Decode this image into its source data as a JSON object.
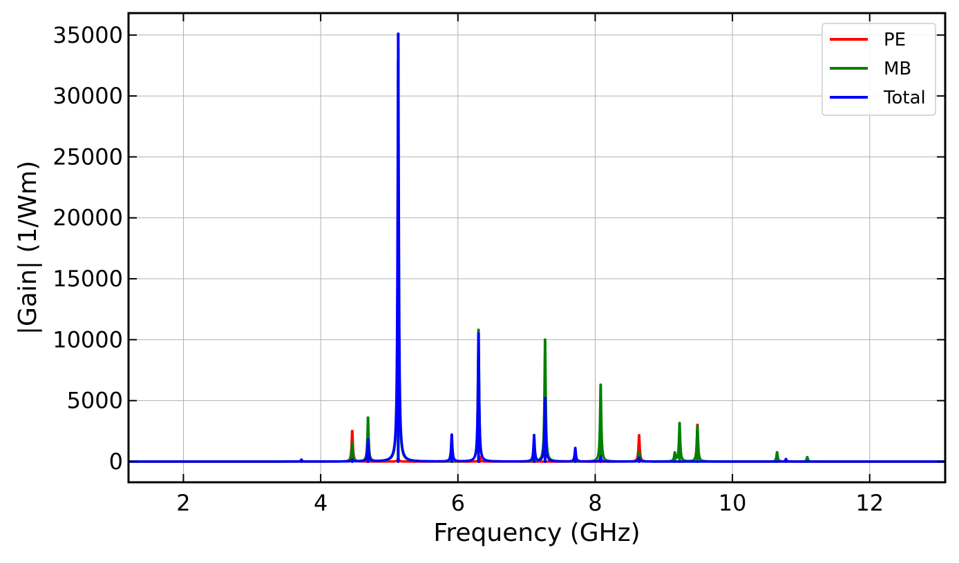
{
  "chart_data": {
    "type": "line",
    "title": "",
    "xlabel": "Frequency (GHz)",
    "ylabel": "|Gain| (1/Wm)",
    "xlim": [
      1.2,
      13.1
    ],
    "ylim": [
      -1700,
      36800
    ],
    "xticks": [
      2,
      4,
      6,
      8,
      10,
      12
    ],
    "xtick_labels": [
      "2",
      "4",
      "6",
      "8",
      "10",
      "12"
    ],
    "yticks": [
      0,
      5000,
      10000,
      15000,
      20000,
      25000,
      30000,
      35000
    ],
    "ytick_labels": [
      "0",
      "5000",
      "10000",
      "15000",
      "20000",
      "25000",
      "30000",
      "35000"
    ],
    "grid": true,
    "legend_position": "top-right",
    "series": [
      {
        "name": "PE",
        "color": "#ff0000",
        "peaks": [
          {
            "x": 4.46,
            "y": 2500
          },
          {
            "x": 5.13,
            "y": 300
          },
          {
            "x": 6.32,
            "y": 350
          },
          {
            "x": 8.64,
            "y": 2150
          },
          {
            "x": 9.49,
            "y": 3000
          }
        ]
      },
      {
        "name": "MB",
        "color": "#008000",
        "peaks": [
          {
            "x": 4.46,
            "y": 1500
          },
          {
            "x": 4.69,
            "y": 3600
          },
          {
            "x": 5.13,
            "y": 28500
          },
          {
            "x": 6.3,
            "y": 10800
          },
          {
            "x": 7.27,
            "y": 10000
          },
          {
            "x": 8.08,
            "y": 6300
          },
          {
            "x": 8.64,
            "y": 800
          },
          {
            "x": 9.16,
            "y": 700
          },
          {
            "x": 9.23,
            "y": 3150
          },
          {
            "x": 9.49,
            "y": 2900
          },
          {
            "x": 10.65,
            "y": 750
          },
          {
            "x": 11.09,
            "y": 350
          }
        ]
      },
      {
        "name": "Total",
        "color": "#0000ff",
        "peaks": [
          {
            "x": 3.72,
            "y": 150
          },
          {
            "x": 4.46,
            "y": 150
          },
          {
            "x": 4.69,
            "y": 1800
          },
          {
            "x": 5.13,
            "y": 35100
          },
          {
            "x": 5.91,
            "y": 2200
          },
          {
            "x": 6.3,
            "y": 10500
          },
          {
            "x": 7.11,
            "y": 2150
          },
          {
            "x": 7.27,
            "y": 5200
          },
          {
            "x": 7.71,
            "y": 1100
          },
          {
            "x": 8.08,
            "y": 400
          },
          {
            "x": 8.64,
            "y": 300
          },
          {
            "x": 10.78,
            "y": 200
          }
        ]
      }
    ]
  }
}
